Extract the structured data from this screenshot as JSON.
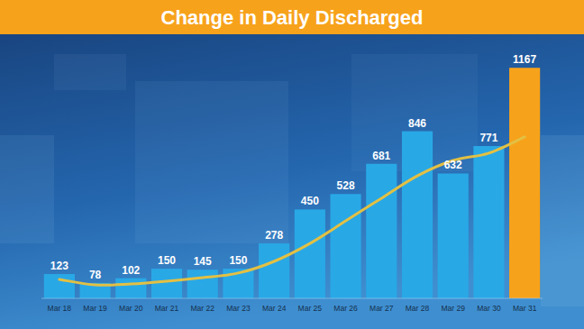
{
  "chart_data": {
    "type": "bar",
    "title": "Change in Daily Discharged",
    "categories": [
      "Mar 18",
      "Mar 19",
      "Mar 20",
      "Mar 21",
      "Mar 22",
      "Mar 23",
      "Mar 24",
      "Mar 25",
      "Mar 26",
      "Mar 27",
      "Mar 28",
      "Mar 29",
      "Mar 30",
      "Mar 31"
    ],
    "series": [
      {
        "type": "bar",
        "values": [
          123,
          78,
          102,
          150,
          145,
          150,
          278,
          450,
          528,
          681,
          846,
          632,
          771,
          1167
        ],
        "colors": [
          "#29a8e6",
          "#29a8e6",
          "#29a8e6",
          "#29a8e6",
          "#29a8e6",
          "#29a8e6",
          "#29a8e6",
          "#29a8e6",
          "#29a8e6",
          "#29a8e6",
          "#29a8e6",
          "#29a8e6",
          "#29a8e6",
          "#f7a21b"
        ]
      },
      {
        "type": "line",
        "color": "#e3c043",
        "values": [
          96,
          68,
          73,
          87,
          105,
          128,
          187,
          278,
          392,
          507,
          620,
          698,
          735,
          817
        ]
      }
    ],
    "ylim": [
      0,
      1200
    ],
    "data_labels": true,
    "tick_labels": "x",
    "grid": false
  }
}
